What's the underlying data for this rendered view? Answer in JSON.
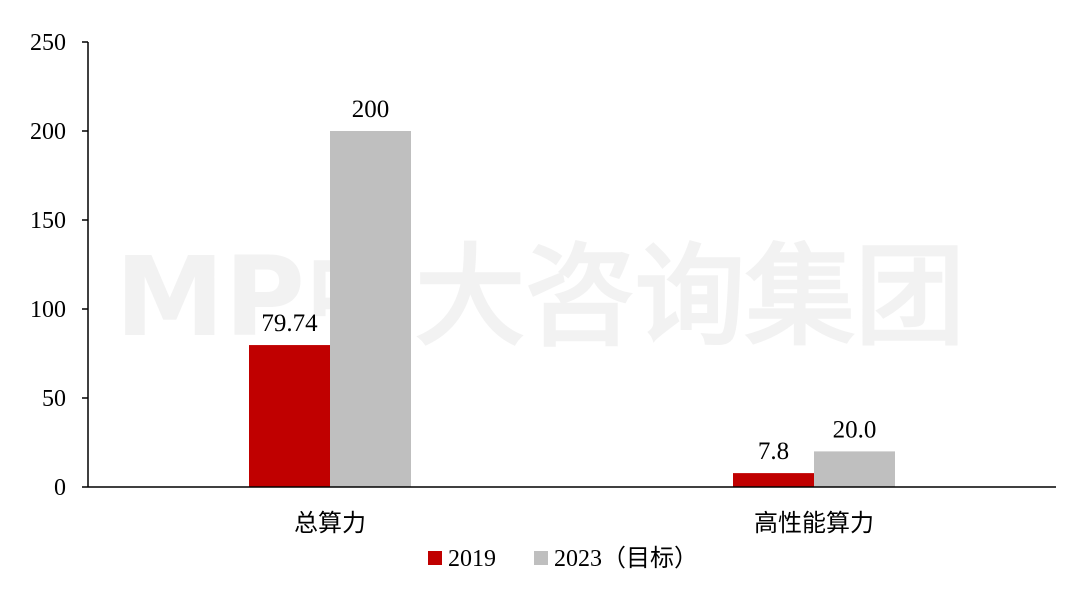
{
  "watermark": "MP中大咨询集团",
  "chart_data": {
    "type": "bar",
    "categories": [
      "总算力",
      "高性能算力"
    ],
    "series": [
      {
        "name": "2019",
        "values": [
          79.74,
          7.8
        ],
        "labels": [
          "79.74",
          "7.8"
        ],
        "color": "#c00000"
      },
      {
        "name": "2023（目标）",
        "values": [
          200,
          20.0
        ],
        "labels": [
          "200",
          "20.0"
        ],
        "color": "#bfbfbf"
      }
    ],
    "ylim": [
      0,
      250
    ],
    "yticks": [
      0,
      50,
      100,
      150,
      200,
      250
    ],
    "grid": false,
    "legend": "bottom"
  }
}
